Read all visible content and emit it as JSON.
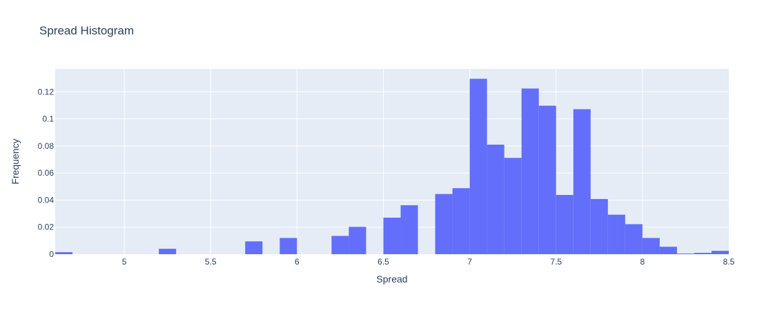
{
  "chart_data": {
    "type": "bar",
    "title": "Spread Histogram",
    "xlabel": "Spread",
    "ylabel": "Frequency",
    "xlim": [
      4.6,
      8.5
    ],
    "ylim": [
      0,
      0.137
    ],
    "xticks": [
      5,
      5.5,
      6,
      6.5,
      7,
      7.5,
      8,
      8.5
    ],
    "xtick_labels": [
      "5",
      "5.5",
      "6",
      "6.5",
      "7",
      "7.5",
      "8",
      "8.5"
    ],
    "yticks": [
      0,
      0.02,
      0.04,
      0.06,
      0.08,
      0.1,
      0.12
    ],
    "ytick_labels": [
      "0",
      "0.02",
      "0.04",
      "0.06",
      "0.08",
      "0.1",
      "0.12"
    ],
    "bin_width": 0.1,
    "bins": [
      {
        "x0": 4.6,
        "value": 0.0015
      },
      {
        "x0": 5.2,
        "value": 0.004
      },
      {
        "x0": 5.7,
        "value": 0.0095
      },
      {
        "x0": 5.9,
        "value": 0.012
      },
      {
        "x0": 6.2,
        "value": 0.0135
      },
      {
        "x0": 6.3,
        "value": 0.0202
      },
      {
        "x0": 6.5,
        "value": 0.027
      },
      {
        "x0": 6.6,
        "value": 0.0362
      },
      {
        "x0": 6.8,
        "value": 0.0445
      },
      {
        "x0": 6.9,
        "value": 0.0488
      },
      {
        "x0": 7.0,
        "value": 0.1297
      },
      {
        "x0": 7.1,
        "value": 0.081
      },
      {
        "x0": 7.2,
        "value": 0.0712
      },
      {
        "x0": 7.3,
        "value": 0.1225
      },
      {
        "x0": 7.4,
        "value": 0.1098
      },
      {
        "x0": 7.5,
        "value": 0.0438
      },
      {
        "x0": 7.6,
        "value": 0.1072
      },
      {
        "x0": 7.7,
        "value": 0.0408
      },
      {
        "x0": 7.8,
        "value": 0.0292
      },
      {
        "x0": 7.9,
        "value": 0.0222
      },
      {
        "x0": 8.0,
        "value": 0.012
      },
      {
        "x0": 8.1,
        "value": 0.0055
      },
      {
        "x0": 8.2,
        "value": 0.0005
      },
      {
        "x0": 8.3,
        "value": 0.001
      },
      {
        "x0": 8.4,
        "value": 0.0025
      }
    ],
    "grid": true,
    "colors": {
      "bar": "#636efa",
      "plot_bg": "#e5ecf6",
      "grid": "#ffffff",
      "text": "#2a3f5f"
    }
  }
}
